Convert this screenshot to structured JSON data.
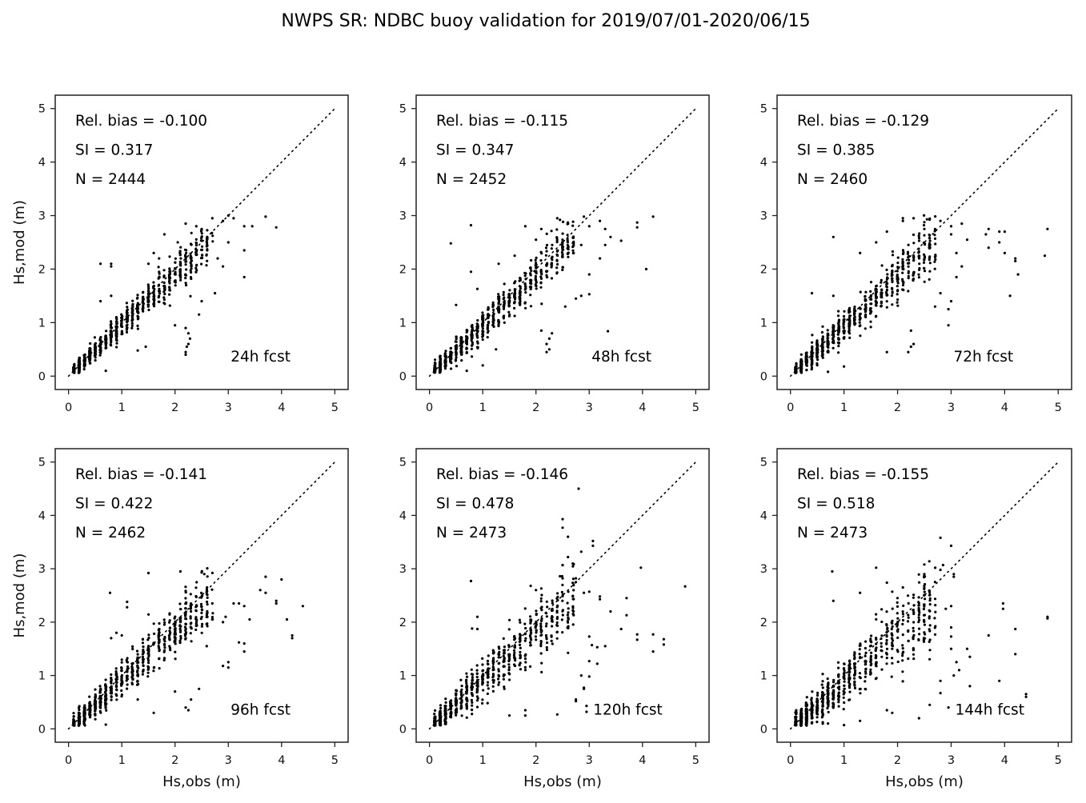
{
  "figure": {
    "title": "NWPS SR: NDBC buoy validation for 2019/07/01-2020/06/15"
  },
  "chart_data": [
    {
      "type": "scatter",
      "panel": "24h",
      "label": "24h fcst",
      "stats": {
        "rel_bias": "Rel. bias = -0.100",
        "si": "SI =  0.317",
        "n": "N = 2444"
      },
      "xlabel": "",
      "ylabel": "Hs,mod (m)",
      "xlim": [
        -0.25,
        5.25
      ],
      "ylim": [
        -0.25,
        5.25
      ],
      "xticks": [
        "0",
        "1",
        "2",
        "3",
        "4",
        "5"
      ],
      "yticks": [
        "0",
        "1",
        "2",
        "3",
        "4",
        "5"
      ],
      "reference_line": {
        "style": "dotted",
        "from": [
          0,
          0
        ],
        "to": [
          5,
          5
        ]
      },
      "spread": 0.22,
      "drop": 0.05,
      "outliers": [
        [
          0.6,
          2.1
        ],
        [
          0.8,
          2.05
        ],
        [
          0.8,
          2.1
        ],
        [
          0.8,
          1.5
        ],
        [
          0.6,
          1.4
        ],
        [
          1.7,
          2.2
        ],
        [
          1.8,
          2.65
        ],
        [
          2.2,
          2.85
        ],
        [
          2.4,
          2.8
        ],
        [
          2.5,
          2.75
        ],
        [
          2.7,
          2.95
        ],
        [
          2.9,
          2.9
        ],
        [
          3.0,
          3.0
        ],
        [
          3.1,
          2.95
        ],
        [
          3.3,
          2.8
        ],
        [
          3.3,
          2.35
        ],
        [
          3.45,
          2.8
        ],
        [
          3.7,
          2.98
        ],
        [
          3.9,
          2.78
        ],
        [
          3.3,
          1.85
        ],
        [
          2.75,
          1.55
        ],
        [
          2.5,
          1.4
        ],
        [
          2.45,
          1.15
        ],
        [
          2.2,
          0.45
        ],
        [
          2.2,
          0.4
        ],
        [
          2.25,
          0.6
        ],
        [
          2.28,
          0.7
        ],
        [
          2.22,
          0.55
        ],
        [
          2.25,
          0.8
        ],
        [
          2.2,
          0.9
        ],
        [
          2.0,
          0.95
        ],
        [
          1.3,
          0.48
        ],
        [
          1.45,
          0.55
        ],
        [
          0.7,
          0.1
        ],
        [
          2.9,
          2.05
        ],
        [
          3.0,
          2.5
        ],
        [
          2.6,
          2.55
        ],
        [
          2.8,
          2.2
        ],
        [
          2.05,
          2.5
        ],
        [
          1.5,
          2.1
        ],
        [
          1.6,
          2.3
        ]
      ]
    },
    {
      "type": "scatter",
      "panel": "48h",
      "label": "48h fcst",
      "stats": {
        "rel_bias": "Rel. bias = -0.115",
        "si": "SI =  0.347",
        "n": "N = 2452"
      },
      "xlabel": "",
      "ylabel": "",
      "xlim": [
        -0.25,
        5.25
      ],
      "ylim": [
        -0.25,
        5.25
      ],
      "xticks": [
        "0",
        "1",
        "2",
        "3",
        "4",
        "5"
      ],
      "yticks": [
        "0",
        "1",
        "2",
        "3",
        "4",
        "5"
      ],
      "reference_line": {
        "style": "dotted",
        "from": [
          0,
          0
        ],
        "to": [
          5,
          5
        ]
      },
      "spread": 0.25,
      "drop": 0.06,
      "outliers": [
        [
          0.4,
          2.48
        ],
        [
          0.78,
          2.82
        ],
        [
          0.78,
          1.95
        ],
        [
          0.9,
          1.63
        ],
        [
          0.5,
          1.33
        ],
        [
          1.8,
          2.8
        ],
        [
          2.1,
          2.75
        ],
        [
          2.0,
          2.55
        ],
        [
          2.4,
          2.95
        ],
        [
          2.45,
          2.92
        ],
        [
          2.9,
          2.98
        ],
        [
          3.0,
          2.8
        ],
        [
          3.2,
          2.9
        ],
        [
          3.3,
          2.75
        ],
        [
          3.3,
          2.45
        ],
        [
          3.4,
          2.6
        ],
        [
          3.6,
          2.53
        ],
        [
          3.9,
          2.87
        ],
        [
          3.9,
          2.78
        ],
        [
          4.2,
          2.98
        ],
        [
          4.07,
          2.0
        ],
        [
          3.35,
          0.84
        ],
        [
          2.2,
          0.45
        ],
        [
          2.25,
          0.5
        ],
        [
          2.2,
          0.6
        ],
        [
          2.25,
          0.7
        ],
        [
          2.1,
          0.85
        ],
        [
          2.3,
          0.8
        ],
        [
          3.0,
          1.9
        ],
        [
          3.0,
          1.53
        ],
        [
          2.85,
          1.5
        ],
        [
          2.75,
          1.45
        ],
        [
          2.55,
          1.3
        ],
        [
          1.25,
          0.5
        ],
        [
          0.7,
          0.1
        ],
        [
          1.0,
          0.2
        ],
        [
          2.7,
          2.3
        ],
        [
          2.85,
          2.45
        ],
        [
          3.2,
          2.2
        ],
        [
          1.6,
          2.25
        ],
        [
          1.3,
          2.1
        ]
      ]
    },
    {
      "type": "scatter",
      "panel": "72h",
      "label": "72h fcst",
      "stats": {
        "rel_bias": "Rel. bias = -0.129",
        "si": "SI =  0.385",
        "n": "N = 2460"
      },
      "xlabel": "",
      "ylabel": "",
      "xlim": [
        -0.25,
        5.25
      ],
      "ylim": [
        -0.25,
        5.25
      ],
      "xticks": [
        "0",
        "1",
        "2",
        "3",
        "4",
        "5"
      ],
      "yticks": [
        "0",
        "1",
        "2",
        "3",
        "4",
        "5"
      ],
      "reference_line": {
        "style": "dotted",
        "from": [
          0,
          0
        ],
        "to": [
          5,
          5
        ]
      },
      "spread": 0.28,
      "drop": 0.07,
      "outliers": [
        [
          0.4,
          1.55
        ],
        [
          0.8,
          2.6
        ],
        [
          0.8,
          1.5
        ],
        [
          1.3,
          2.3
        ],
        [
          1.6,
          2.5
        ],
        [
          1.8,
          2.7
        ],
        [
          2.1,
          2.95
        ],
        [
          2.1,
          2.9
        ],
        [
          2.3,
          2.95
        ],
        [
          2.5,
          2.75
        ],
        [
          2.55,
          2.93
        ],
        [
          2.8,
          2.9
        ],
        [
          3.0,
          2.8
        ],
        [
          3.0,
          2.65
        ],
        [
          3.2,
          2.85
        ],
        [
          3.3,
          2.55
        ],
        [
          3.65,
          2.65
        ],
        [
          3.7,
          2.75
        ],
        [
          3.7,
          2.4
        ],
        [
          3.9,
          2.7
        ],
        [
          3.9,
          2.5
        ],
        [
          4.0,
          2.7
        ],
        [
          4.0,
          2.3
        ],
        [
          4.2,
          2.2
        ],
        [
          4.2,
          2.15
        ],
        [
          4.25,
          1.9
        ],
        [
          4.1,
          1.5
        ],
        [
          4.75,
          2.25
        ],
        [
          4.8,
          2.75
        ],
        [
          2.95,
          0.95
        ],
        [
          2.95,
          1.25
        ],
        [
          3.0,
          1.4
        ],
        [
          3.1,
          1.85
        ],
        [
          3.2,
          2.05
        ],
        [
          3.1,
          2.3
        ],
        [
          2.2,
          0.45
        ],
        [
          2.25,
          0.55
        ],
        [
          2.3,
          0.6
        ],
        [
          2.25,
          0.85
        ],
        [
          1.8,
          0.45
        ],
        [
          1.0,
          0.18
        ],
        [
          0.7,
          0.08
        ],
        [
          2.8,
          1.55
        ],
        [
          2.7,
          1.3
        ]
      ]
    },
    {
      "type": "scatter",
      "panel": "96h",
      "label": "96h fcst",
      "stats": {
        "rel_bias": "Rel. bias = -0.141",
        "si": "SI =  0.422",
        "n": "N = 2462"
      },
      "xlabel": "Hs,obs (m)",
      "ylabel": "Hs,mod (m)",
      "xlim": [
        -0.25,
        5.25
      ],
      "ylim": [
        -0.25,
        5.25
      ],
      "xticks": [
        "0",
        "1",
        "2",
        "3",
        "4",
        "5"
      ],
      "yticks": [
        "0",
        "1",
        "2",
        "3",
        "4",
        "5"
      ],
      "reference_line": {
        "style": "dotted",
        "from": [
          0,
          0
        ],
        "to": [
          5,
          5
        ]
      },
      "spread": 0.3,
      "drop": 0.08,
      "outliers": [
        [
          0.78,
          2.55
        ],
        [
          0.8,
          1.7
        ],
        [
          0.9,
          1.8
        ],
        [
          1.0,
          1.75
        ],
        [
          1.1,
          2.38
        ],
        [
          1.1,
          2.28
        ],
        [
          1.5,
          2.92
        ],
        [
          2.1,
          2.95
        ],
        [
          2.5,
          2.93
        ],
        [
          2.55,
          2.9
        ],
        [
          2.6,
          2.65
        ],
        [
          2.7,
          2.35
        ],
        [
          3.1,
          2.35
        ],
        [
          3.2,
          2.35
        ],
        [
          3.3,
          2.3
        ],
        [
          3.4,
          2.05
        ],
        [
          3.6,
          2.6
        ],
        [
          3.7,
          2.85
        ],
        [
          3.7,
          2.55
        ],
        [
          3.9,
          2.4
        ],
        [
          3.9,
          2.35
        ],
        [
          4.0,
          2.8
        ],
        [
          4.1,
          2.05
        ],
        [
          4.2,
          1.75
        ],
        [
          4.2,
          1.7
        ],
        [
          4.4,
          2.3
        ],
        [
          3.2,
          1.62
        ],
        [
          3.3,
          1.6
        ],
        [
          3.3,
          1.45
        ],
        [
          3.0,
          1.25
        ],
        [
          3.0,
          1.15
        ],
        [
          2.9,
          1.18
        ],
        [
          2.2,
          0.4
        ],
        [
          2.25,
          0.35
        ],
        [
          2.3,
          0.55
        ],
        [
          1.6,
          0.3
        ],
        [
          1.3,
          0.55
        ],
        [
          0.7,
          0.08
        ],
        [
          2.45,
          0.75
        ],
        [
          2.0,
          0.7
        ],
        [
          2.9,
          2.0
        ],
        [
          2.95,
          2.1
        ]
      ]
    },
    {
      "type": "scatter",
      "panel": "120h",
      "label": "120h fcst",
      "stats": {
        "rel_bias": "Rel. bias = -0.146",
        "si": "SI =  0.478",
        "n": "N = 2473"
      },
      "xlabel": "Hs,obs (m)",
      "ylabel": "",
      "xlim": [
        -0.25,
        5.25
      ],
      "ylim": [
        -0.25,
        5.25
      ],
      "xticks": [
        "0",
        "1",
        "2",
        "3",
        "4",
        "5"
      ],
      "yticks": [
        "0",
        "1",
        "2",
        "3",
        "4",
        "5"
      ],
      "reference_line": {
        "style": "dotted",
        "from": [
          0,
          0
        ],
        "to": [
          5,
          5
        ]
      },
      "spread": 0.34,
      "drop": 0.1,
      "outliers": [
        [
          0.78,
          2.77
        ],
        [
          0.8,
          1.88
        ],
        [
          0.9,
          2.1
        ],
        [
          0.9,
          1.87
        ],
        [
          2.8,
          4.5
        ],
        [
          2.5,
          3.93
        ],
        [
          2.5,
          3.77
        ],
        [
          2.6,
          3.6
        ],
        [
          2.6,
          3.22
        ],
        [
          2.85,
          3.32
        ],
        [
          3.07,
          3.52
        ],
        [
          3.07,
          3.43
        ],
        [
          2.5,
          3.07
        ],
        [
          2.45,
          2.86
        ],
        [
          2.5,
          2.82
        ],
        [
          2.75,
          2.82
        ],
        [
          2.75,
          2.75
        ],
        [
          1.9,
          2.68
        ],
        [
          2.0,
          2.6
        ],
        [
          2.1,
          2.63
        ],
        [
          2.9,
          2.55
        ],
        [
          3.0,
          2.57
        ],
        [
          3.2,
          2.48
        ],
        [
          3.2,
          2.43
        ],
        [
          3.4,
          2.2
        ],
        [
          3.7,
          2.45
        ],
        [
          3.7,
          2.13
        ],
        [
          3.6,
          1.87
        ],
        [
          3.9,
          1.77
        ],
        [
          3.9,
          1.67
        ],
        [
          3.97,
          3.02
        ],
        [
          4.2,
          1.77
        ],
        [
          4.2,
          1.45
        ],
        [
          4.4,
          1.68
        ],
        [
          4.4,
          1.58
        ],
        [
          4.8,
          2.67
        ],
        [
          3.0,
          1.73
        ],
        [
          3.05,
          1.57
        ],
        [
          3.15,
          1.53
        ],
        [
          3.3,
          1.55
        ],
        [
          3.15,
          1.22
        ],
        [
          3.0,
          1.27
        ],
        [
          3.0,
          0.98
        ],
        [
          2.85,
          1.0
        ],
        [
          2.9,
          0.77
        ],
        [
          2.9,
          0.75
        ],
        [
          2.75,
          0.55
        ],
        [
          2.75,
          0.52
        ],
        [
          2.95,
          0.43
        ],
        [
          2.95,
          0.32
        ],
        [
          2.4,
          0.27
        ],
        [
          1.8,
          0.25
        ],
        [
          1.8,
          0.35
        ],
        [
          1.5,
          0.25
        ]
      ]
    },
    {
      "type": "scatter",
      "panel": "144h",
      "label": "144h fcst",
      "stats": {
        "rel_bias": "Rel. bias = -0.155",
        "si": "SI =  0.518",
        "n": "N = 2473"
      },
      "xlabel": "Hs,obs (m)",
      "ylabel": "",
      "xlim": [
        -0.25,
        5.25
      ],
      "ylim": [
        -0.25,
        5.25
      ],
      "xticks": [
        "0",
        "1",
        "2",
        "3",
        "4",
        "5"
      ],
      "yticks": [
        "0",
        "1",
        "2",
        "3",
        "4",
        "5"
      ],
      "reference_line": {
        "style": "dotted",
        "from": [
          0,
          0
        ],
        "to": [
          5,
          5
        ]
      },
      "spread": 0.38,
      "drop": 0.12,
      "outliers": [
        [
          0.78,
          2.95
        ],
        [
          0.8,
          2.4
        ],
        [
          1.3,
          2.55
        ],
        [
          1.6,
          3.02
        ],
        [
          1.8,
          2.74
        ],
        [
          1.9,
          2.57
        ],
        [
          2.0,
          2.45
        ],
        [
          2.1,
          2.65
        ],
        [
          2.5,
          3.08
        ],
        [
          2.5,
          2.9
        ],
        [
          2.8,
          3.58
        ],
        [
          2.8,
          2.98
        ],
        [
          2.85,
          3.07
        ],
        [
          3.0,
          3.43
        ],
        [
          3.05,
          2.9
        ],
        [
          3.05,
          2.85
        ],
        [
          2.9,
          2.25
        ],
        [
          3.0,
          2.3
        ],
        [
          3.0,
          1.9
        ],
        [
          3.0,
          1.73
        ],
        [
          3.0,
          1.5
        ],
        [
          3.3,
          1.5
        ],
        [
          3.35,
          1.35
        ],
        [
          3.1,
          1.25
        ],
        [
          3.15,
          1.1
        ],
        [
          3.05,
          1.0
        ],
        [
          3.35,
          0.8
        ],
        [
          3.7,
          1.75
        ],
        [
          3.9,
          0.9
        ],
        [
          3.97,
          2.35
        ],
        [
          3.97,
          2.25
        ],
        [
          4.2,
          1.87
        ],
        [
          4.2,
          1.4
        ],
        [
          4.4,
          0.65
        ],
        [
          4.4,
          0.6
        ],
        [
          4.8,
          2.1
        ],
        [
          4.8,
          2.07
        ],
        [
          2.95,
          0.4
        ],
        [
          2.6,
          0.45
        ],
        [
          2.4,
          0.2
        ],
        [
          1.9,
          0.3
        ],
        [
          1.8,
          0.35
        ],
        [
          1.3,
          0.15
        ],
        [
          1.0,
          0.07
        ],
        [
          0.7,
          0.1
        ],
        [
          2.8,
          0.67
        ],
        [
          2.8,
          0.9
        ]
      ]
    }
  ]
}
